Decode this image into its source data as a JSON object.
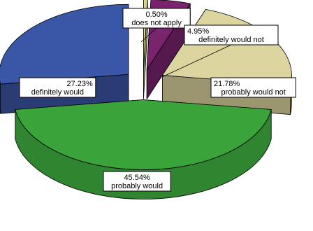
{
  "chart_data": {
    "type": "pie",
    "style": "3d-exploded",
    "slices": [
      {
        "label": "does not apply",
        "percent_label": "0.50%",
        "value": 0.5,
        "color": "#d8d38a"
      },
      {
        "label": "definitely would not",
        "percent_label": "4.95%",
        "value": 4.95,
        "color": "#7a246e"
      },
      {
        "label": "probably would not",
        "percent_label": "21.78%",
        "value": 21.78,
        "color": "#ddd5a0"
      },
      {
        "label": "probably would",
        "percent_label": "45.54%",
        "value": 45.54,
        "color": "#3aa43a"
      },
      {
        "label": "definitely would",
        "percent_label": "27.23%",
        "value": 27.23,
        "color": "#3a56a6"
      }
    ]
  }
}
